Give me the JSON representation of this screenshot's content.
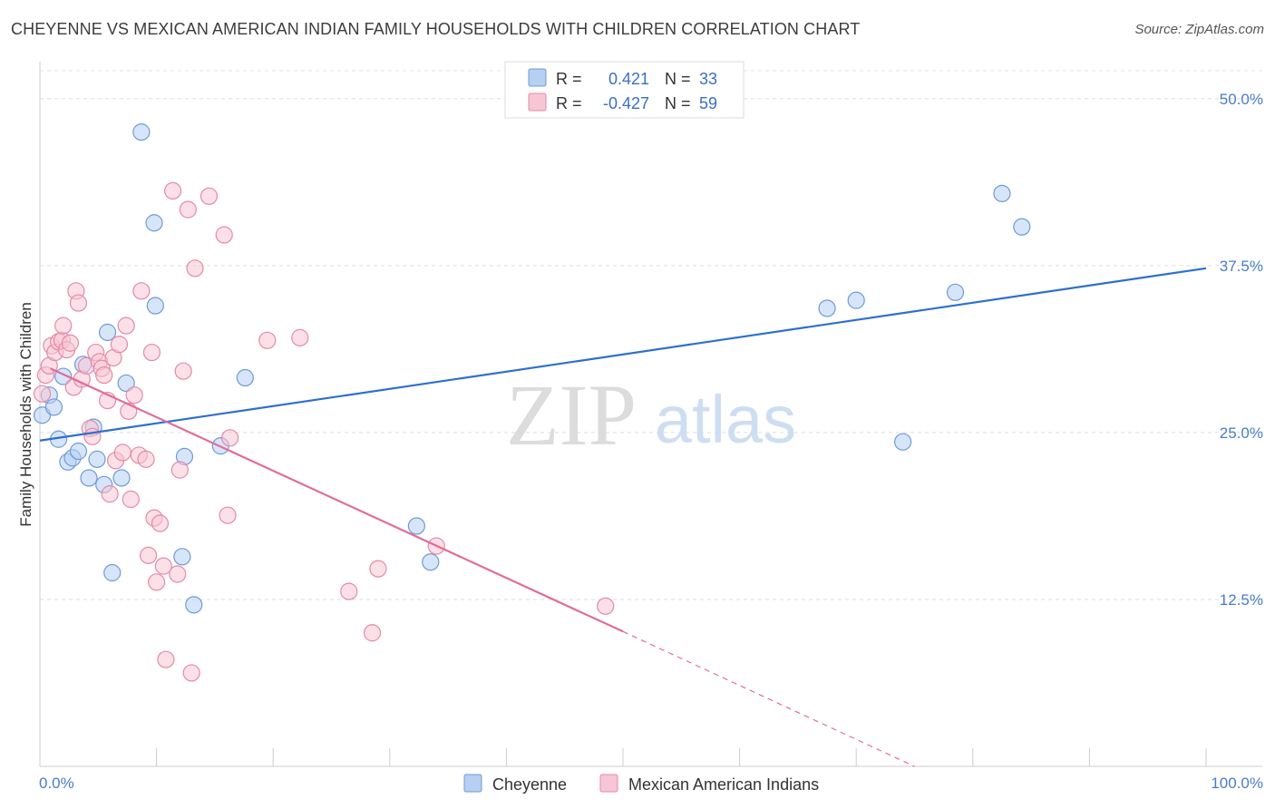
{
  "title": "CHEYENNE VS MEXICAN AMERICAN INDIAN FAMILY HOUSEHOLDS WITH CHILDREN CORRELATION CHART",
  "source": "Source: ZipAtlas.com",
  "watermark": {
    "zip": "ZIP",
    "atlas": "atlas"
  },
  "legend_top": [
    {
      "r_label": "R =",
      "r_value": "0.421",
      "n_label": "N =",
      "n_value": "33",
      "color": "#b7cff2",
      "stroke": "#6f9ad8"
    },
    {
      "r_label": "R =",
      "r_value": "-0.427",
      "n_label": "N =",
      "n_value": "59",
      "color": "#f7c6d5",
      "stroke": "#e48aa7"
    }
  ],
  "chart_data": {
    "type": "scatter",
    "title": "CHEYENNE VS MEXICAN AMERICAN INDIAN FAMILY HOUSEHOLDS WITH CHILDREN CORRELATION CHART",
    "xlabel": "",
    "ylabel": "Family Households with Children",
    "xlim": [
      0,
      100
    ],
    "ylim": [
      0,
      52.5
    ],
    "x_tick_labels": [
      "0.0%",
      "100.0%"
    ],
    "y_ticks": [
      12.5,
      25.0,
      37.5,
      50.0
    ],
    "y_tick_labels": [
      "12.5%",
      "25.0%",
      "37.5%",
      "50.0%"
    ],
    "grid": true,
    "legend_position": "bottom-center",
    "series": [
      {
        "name": "Cheyenne",
        "color": "#b7cff2",
        "stroke": "#6f9ad8",
        "line_color": "#2d6fcf",
        "trend": {
          "x": [
            0,
            100
          ],
          "y": [
            24.4,
            37.3
          ],
          "dashed_from": null
        },
        "points": [
          [
            0.2,
            26.3
          ],
          [
            0.8,
            27.8
          ],
          [
            1.2,
            26.9
          ],
          [
            1.6,
            24.5
          ],
          [
            2.0,
            29.2
          ],
          [
            2.4,
            22.8
          ],
          [
            2.8,
            23.1
          ],
          [
            3.3,
            23.6
          ],
          [
            3.7,
            30.1
          ],
          [
            4.2,
            21.6
          ],
          [
            4.6,
            25.4
          ],
          [
            4.9,
            23.0
          ],
          [
            5.5,
            21.1
          ],
          [
            5.8,
            32.5
          ],
          [
            6.2,
            14.5
          ],
          [
            7.0,
            21.6
          ],
          [
            7.4,
            28.7
          ],
          [
            8.7,
            47.5
          ],
          [
            9.8,
            40.7
          ],
          [
            9.9,
            34.5
          ],
          [
            12.2,
            15.7
          ],
          [
            12.4,
            23.2
          ],
          [
            13.2,
            12.1
          ],
          [
            15.5,
            24.0
          ],
          [
            17.6,
            29.1
          ],
          [
            32.3,
            18.0
          ],
          [
            33.5,
            15.3
          ],
          [
            67.5,
            34.3
          ],
          [
            70.0,
            34.9
          ],
          [
            74.0,
            24.3
          ],
          [
            78.5,
            35.5
          ],
          [
            82.5,
            42.9
          ],
          [
            84.2,
            40.4
          ]
        ]
      },
      {
        "name": "Mexican American Indians",
        "color": "#f7c6d5",
        "stroke": "#e48aa7",
        "line_color": "#e06e98",
        "trend": {
          "x": [
            0.9,
            50.0,
            75.0
          ],
          "y": [
            29.8,
            10.1,
            0.0
          ],
          "dashed_from": 50.0
        },
        "points": [
          [
            0.2,
            27.9
          ],
          [
            0.5,
            29.3
          ],
          [
            0.8,
            30.0
          ],
          [
            1.0,
            31.5
          ],
          [
            1.3,
            31.0
          ],
          [
            1.6,
            31.8
          ],
          [
            1.9,
            31.9
          ],
          [
            2.0,
            33.0
          ],
          [
            2.3,
            31.2
          ],
          [
            2.6,
            31.7
          ],
          [
            2.9,
            28.4
          ],
          [
            3.1,
            35.6
          ],
          [
            3.3,
            34.7
          ],
          [
            3.6,
            29.0
          ],
          [
            4.0,
            30.0
          ],
          [
            4.3,
            25.3
          ],
          [
            4.5,
            24.7
          ],
          [
            4.8,
            31.0
          ],
          [
            5.1,
            30.3
          ],
          [
            5.3,
            29.8
          ],
          [
            5.5,
            29.3
          ],
          [
            5.8,
            27.4
          ],
          [
            6.0,
            20.4
          ],
          [
            6.3,
            30.6
          ],
          [
            6.5,
            22.9
          ],
          [
            6.8,
            31.6
          ],
          [
            7.1,
            23.5
          ],
          [
            7.4,
            33.0
          ],
          [
            7.6,
            26.6
          ],
          [
            7.8,
            20.0
          ],
          [
            8.1,
            27.8
          ],
          [
            8.5,
            23.3
          ],
          [
            8.7,
            35.6
          ],
          [
            9.1,
            23.0
          ],
          [
            9.3,
            15.8
          ],
          [
            9.6,
            31.0
          ],
          [
            9.8,
            18.6
          ],
          [
            10.0,
            13.8
          ],
          [
            10.3,
            18.2
          ],
          [
            10.6,
            15.0
          ],
          [
            10.8,
            8.0
          ],
          [
            11.4,
            43.1
          ],
          [
            11.8,
            14.4
          ],
          [
            12.0,
            22.2
          ],
          [
            12.3,
            29.6
          ],
          [
            12.7,
            41.7
          ],
          [
            13.0,
            7.0
          ],
          [
            13.3,
            37.3
          ],
          [
            14.5,
            42.7
          ],
          [
            15.8,
            39.8
          ],
          [
            16.1,
            18.8
          ],
          [
            16.3,
            24.6
          ],
          [
            19.5,
            31.9
          ],
          [
            22.3,
            32.1
          ],
          [
            26.5,
            13.1
          ],
          [
            28.5,
            10.0
          ],
          [
            29.0,
            14.8
          ],
          [
            34.0,
            16.5
          ],
          [
            48.5,
            12.0
          ]
        ]
      }
    ]
  }
}
